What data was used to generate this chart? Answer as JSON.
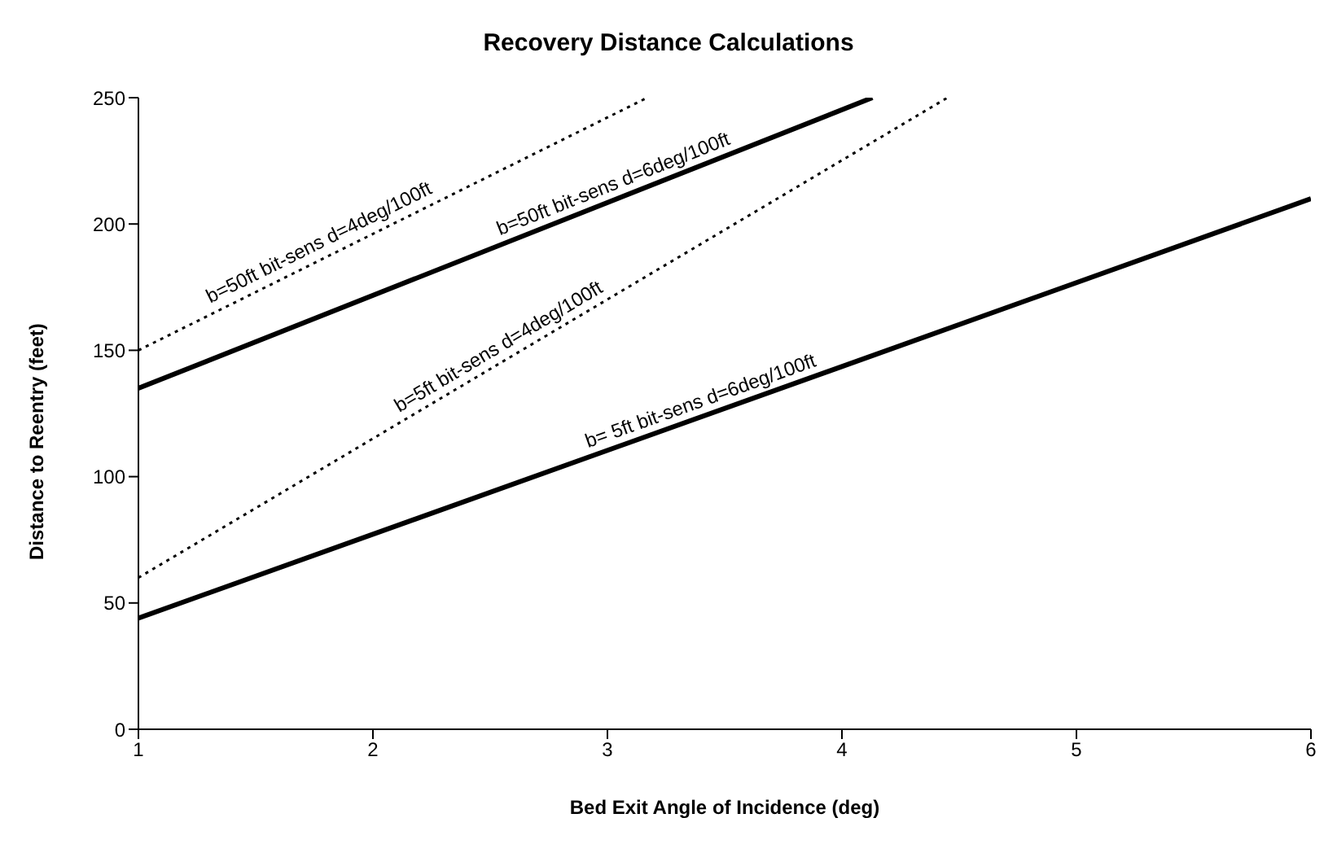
{
  "chart_data": {
    "type": "line",
    "title": "Recovery Distance Calculations",
    "xlabel": "Bed Exit Angle of Incidence    (deg)",
    "ylabel": "Distance to Reentry    (feet)",
    "series": [
      {
        "x": [
          1,
          3.17
        ],
        "values": [
          150,
          250
        ],
        "color": "#000000",
        "line_style": "dotted"
      },
      {
        "x": [
          1,
          4.13
        ],
        "values": [
          135,
          250
        ],
        "color": "#000000",
        "line_style": "solid"
      },
      {
        "x": [
          1,
          4.45
        ],
        "values": [
          60,
          250
        ],
        "color": "#000000",
        "line_style": "dotted"
      },
      {
        "x": [
          1,
          6
        ],
        "values": [
          44,
          210
        ],
        "color": "#000000",
        "line_style": "solid"
      }
    ],
    "annotations": [
      {
        "text": "b=50ft bit-sens d=4deg/100ft",
        "x": 1.8,
        "y": 187
      },
      {
        "text": "b=50ft bit-sens d=6deg/100ft",
        "x": 3.05,
        "y": 210
      },
      {
        "text": "b=5ft bit-sens d=4deg/100ft",
        "x": 2.57,
        "y": 146
      },
      {
        "text": "b= 5ft bit-sens d=6deg/100ft",
        "x": 3.42,
        "y": 124
      }
    ],
    "xlim": [
      1,
      6
    ],
    "xticks": [
      1,
      2,
      3,
      4,
      5,
      6
    ],
    "ylim": [
      0,
      250
    ],
    "yticks": [
      0,
      50,
      100,
      150,
      200,
      250
    ],
    "grid": false,
    "marker": "none"
  }
}
